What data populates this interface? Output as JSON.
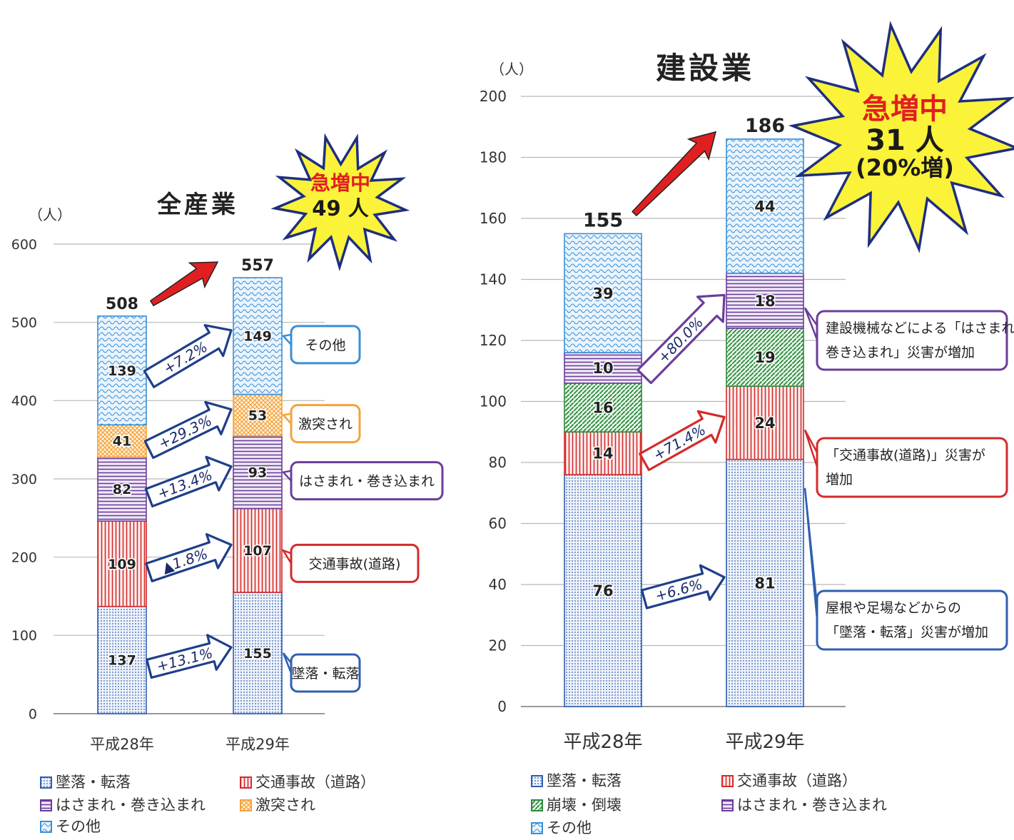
{
  "colors": {
    "fall": "#2f5fb0",
    "traffic": "#d42a2a",
    "caught": "#6a3d9a",
    "struck": "#f4a23a",
    "other": "#3a8fd6",
    "collapse": "#2a8a3a",
    "grid": "#b8b8b8",
    "burst_fill": "#fbf23a",
    "burst_stroke": "#1e2f80",
    "burst_text": "#e02020",
    "red_arrow": "#e02020"
  },
  "chart_data": [
    {
      "type": "bar",
      "stacked": true,
      "title": "全産業",
      "unit_label": "（人）",
      "categories": [
        "平成28年",
        "平成29年"
      ],
      "ylim": [
        0,
        600
      ],
      "yticks": [
        "0",
        "100",
        "200",
        "300",
        "400",
        "500",
        "600"
      ],
      "grid": true,
      "totals": [
        "508",
        "557"
      ],
      "series": [
        {
          "name": "墜落・転落",
          "values": [
            137,
            155
          ],
          "color_key": "fall",
          "change": "+13.1%",
          "callout": "墜落・転落"
        },
        {
          "name": "交通事故（道路）",
          "values": [
            109,
            107
          ],
          "color_key": "traffic",
          "change": "▲1.8%",
          "callout": "交通事故(道路)"
        },
        {
          "name": "はさまれ・巻き込まれ",
          "values": [
            82,
            93
          ],
          "color_key": "caught",
          "change": "+13.4%",
          "callout": "はさまれ・巻き込まれ"
        },
        {
          "name": "激突され",
          "values": [
            41,
            53
          ],
          "color_key": "struck",
          "change": "+29.3%",
          "callout": "激突され"
        },
        {
          "name": "その他",
          "values": [
            139,
            149
          ],
          "color_key": "other",
          "change": "+7.2%",
          "callout": "その他"
        }
      ],
      "burst": {
        "line1": "急増中",
        "line2": "49 人"
      },
      "legend": [
        "墜落・転落",
        "交通事故（道路）",
        "はさまれ・巻き込まれ",
        "激突され",
        "その他"
      ]
    },
    {
      "type": "bar",
      "stacked": true,
      "title": "建設業",
      "unit_label": "（人）",
      "categories": [
        "平成28年",
        "平成29年"
      ],
      "ylim": [
        0,
        200
      ],
      "yticks": [
        "0",
        "20",
        "40",
        "60",
        "80",
        "100",
        "120",
        "140",
        "160",
        "180",
        "200"
      ],
      "grid": true,
      "totals": [
        "155",
        "186"
      ],
      "series": [
        {
          "name": "墜落・転落",
          "values": [
            76,
            81
          ],
          "color_key": "fall",
          "change": "+6.6%"
        },
        {
          "name": "交通事故（道路）",
          "values": [
            14,
            24
          ],
          "color_key": "traffic",
          "change": "+71.4%"
        },
        {
          "name": "崩壊・倒壊",
          "values": [
            16,
            19
          ],
          "color_key": "collapse",
          "change": ""
        },
        {
          "name": "はさまれ・巻き込まれ",
          "values": [
            10,
            18
          ],
          "color_key": "caught",
          "change": "+80.0%"
        },
        {
          "name": "その他",
          "values": [
            39,
            44
          ],
          "color_key": "other",
          "change": ""
        }
      ],
      "burst": {
        "line1": "急増中",
        "line2": "31 人",
        "line3": "(20%増)"
      },
      "callouts": [
        {
          "lines": [
            "建設機械などによる「はさまれ・",
            "巻き込まれ」災害が増加"
          ],
          "color_key": "caught"
        },
        {
          "lines": [
            "「交通事故(道路)」災害が",
            "増加"
          ],
          "color_key": "traffic"
        },
        {
          "lines": [
            "屋根や足場などからの",
            "「墜落・転落」災害が増加"
          ],
          "color_key": "fall"
        }
      ],
      "legend": [
        "墜落・転落",
        "交通事故（道路）",
        "崩壊・倒壊",
        "はさまれ・巻き込まれ",
        "その他"
      ]
    }
  ]
}
